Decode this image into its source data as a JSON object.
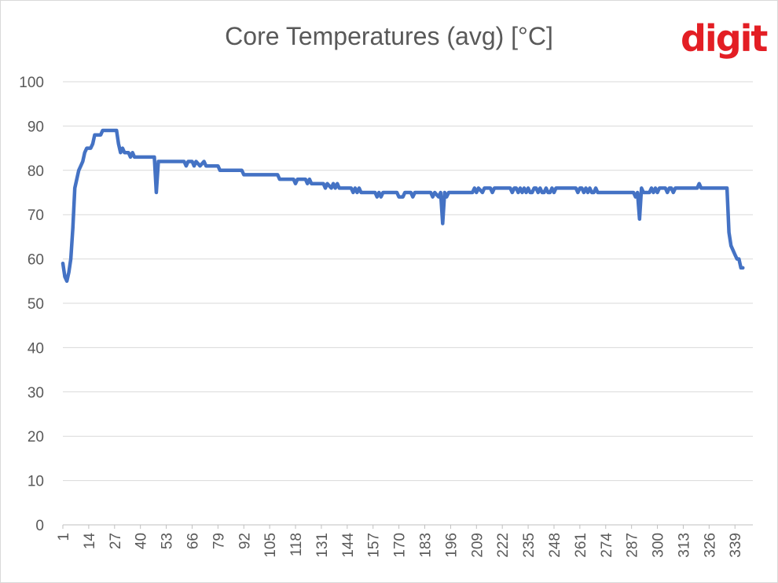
{
  "header": {
    "title": "Core Temperatures (avg) [°C]",
    "logo_text": "digit"
  },
  "chart_data": {
    "type": "line",
    "title": "Core Temperatures (avg) [°C]",
    "xlabel": "",
    "ylabel": "",
    "ylim": [
      0,
      100
    ],
    "yticks": [
      0,
      10,
      20,
      30,
      40,
      50,
      60,
      70,
      80,
      90,
      100
    ],
    "xticks": [
      1,
      14,
      27,
      40,
      53,
      66,
      79,
      92,
      105,
      118,
      131,
      144,
      157,
      170,
      183,
      196,
      209,
      222,
      235,
      248,
      261,
      274,
      287,
      300,
      313,
      326,
      339
    ],
    "x_range": [
      1,
      348
    ],
    "grid": true,
    "line_color": "#4472c4",
    "series": [
      {
        "points": [
          [
            1,
            59
          ],
          [
            2,
            56
          ],
          [
            3,
            55
          ],
          [
            4,
            57
          ],
          [
            5,
            60
          ],
          [
            6,
            67
          ],
          [
            7,
            76
          ],
          [
            8,
            78
          ],
          [
            9,
            80
          ],
          [
            10,
            81
          ],
          [
            11,
            82
          ],
          [
            12,
            84
          ],
          [
            13,
            85
          ],
          [
            15,
            85
          ],
          [
            16,
            86
          ],
          [
            17,
            88
          ],
          [
            20,
            88
          ],
          [
            21,
            89
          ],
          [
            28,
            89
          ],
          [
            29,
            86
          ],
          [
            30,
            84
          ],
          [
            31,
            85
          ],
          [
            32,
            84
          ],
          [
            34,
            84
          ],
          [
            35,
            83
          ],
          [
            36,
            84
          ],
          [
            37,
            83
          ],
          [
            47,
            83
          ],
          [
            48,
            75
          ],
          [
            49,
            82
          ],
          [
            62,
            82
          ],
          [
            63,
            81
          ],
          [
            64,
            82
          ],
          [
            66,
            82
          ],
          [
            67,
            81
          ],
          [
            68,
            82
          ],
          [
            70,
            81
          ],
          [
            72,
            82
          ],
          [
            73,
            81
          ],
          [
            79,
            81
          ],
          [
            80,
            80
          ],
          [
            91,
            80
          ],
          [
            92,
            79
          ],
          [
            109,
            79
          ],
          [
            110,
            78
          ],
          [
            117,
            78
          ],
          [
            118,
            77
          ],
          [
            119,
            78
          ],
          [
            123,
            78
          ],
          [
            124,
            77
          ],
          [
            125,
            78
          ],
          [
            126,
            77
          ],
          [
            132,
            77
          ],
          [
            133,
            76
          ],
          [
            134,
            77
          ],
          [
            136,
            76
          ],
          [
            137,
            77
          ],
          [
            138,
            76
          ],
          [
            139,
            77
          ],
          [
            140,
            76
          ],
          [
            146,
            76
          ],
          [
            147,
            75
          ],
          [
            148,
            76
          ],
          [
            149,
            75
          ],
          [
            150,
            76
          ],
          [
            151,
            75
          ],
          [
            158,
            75
          ],
          [
            159,
            74
          ],
          [
            160,
            75
          ],
          [
            161,
            74
          ],
          [
            162,
            75
          ],
          [
            169,
            75
          ],
          [
            170,
            74
          ],
          [
            172,
            74
          ],
          [
            173,
            75
          ],
          [
            176,
            75
          ],
          [
            177,
            74
          ],
          [
            178,
            75
          ],
          [
            186,
            75
          ],
          [
            187,
            74
          ],
          [
            188,
            75
          ],
          [
            190,
            74
          ],
          [
            191,
            75
          ],
          [
            192,
            68
          ],
          [
            193,
            75
          ],
          [
            194,
            74
          ],
          [
            195,
            75
          ],
          [
            207,
            75
          ],
          [
            208,
            76
          ],
          [
            209,
            75
          ],
          [
            210,
            76
          ],
          [
            212,
            75
          ],
          [
            213,
            76
          ],
          [
            216,
            76
          ],
          [
            217,
            75
          ],
          [
            218,
            76
          ],
          [
            226,
            76
          ],
          [
            227,
            75
          ],
          [
            228,
            76
          ],
          [
            229,
            76
          ],
          [
            230,
            75
          ],
          [
            231,
            76
          ],
          [
            232,
            75
          ],
          [
            233,
            76
          ],
          [
            234,
            75
          ],
          [
            235,
            76
          ],
          [
            236,
            75
          ],
          [
            237,
            75
          ],
          [
            238,
            76
          ],
          [
            239,
            76
          ],
          [
            240,
            75
          ],
          [
            241,
            76
          ],
          [
            242,
            75
          ],
          [
            243,
            75
          ],
          [
            244,
            76
          ],
          [
            245,
            75
          ],
          [
            246,
            75
          ],
          [
            247,
            76
          ],
          [
            248,
            75
          ],
          [
            249,
            76
          ],
          [
            259,
            76
          ],
          [
            260,
            75
          ],
          [
            261,
            76
          ],
          [
            262,
            76
          ],
          [
            263,
            75
          ],
          [
            264,
            76
          ],
          [
            265,
            75
          ],
          [
            266,
            76
          ],
          [
            267,
            75
          ],
          [
            268,
            75
          ],
          [
            269,
            76
          ],
          [
            270,
            75
          ],
          [
            288,
            75
          ],
          [
            289,
            74
          ],
          [
            290,
            75
          ],
          [
            291,
            69
          ],
          [
            292,
            76
          ],
          [
            293,
            75
          ],
          [
            296,
            75
          ],
          [
            297,
            76
          ],
          [
            298,
            75
          ],
          [
            299,
            76
          ],
          [
            300,
            75
          ],
          [
            301,
            76
          ],
          [
            304,
            76
          ],
          [
            305,
            75
          ],
          [
            306,
            76
          ],
          [
            307,
            76
          ],
          [
            308,
            75
          ],
          [
            309,
            76
          ],
          [
            320,
            76
          ],
          [
            321,
            77
          ],
          [
            322,
            76
          ],
          [
            335,
            76
          ],
          [
            336,
            66
          ],
          [
            337,
            63
          ],
          [
            338,
            62
          ],
          [
            339,
            61
          ],
          [
            340,
            60
          ],
          [
            341,
            60
          ],
          [
            342,
            58
          ],
          [
            343,
            58
          ]
        ]
      }
    ]
  }
}
